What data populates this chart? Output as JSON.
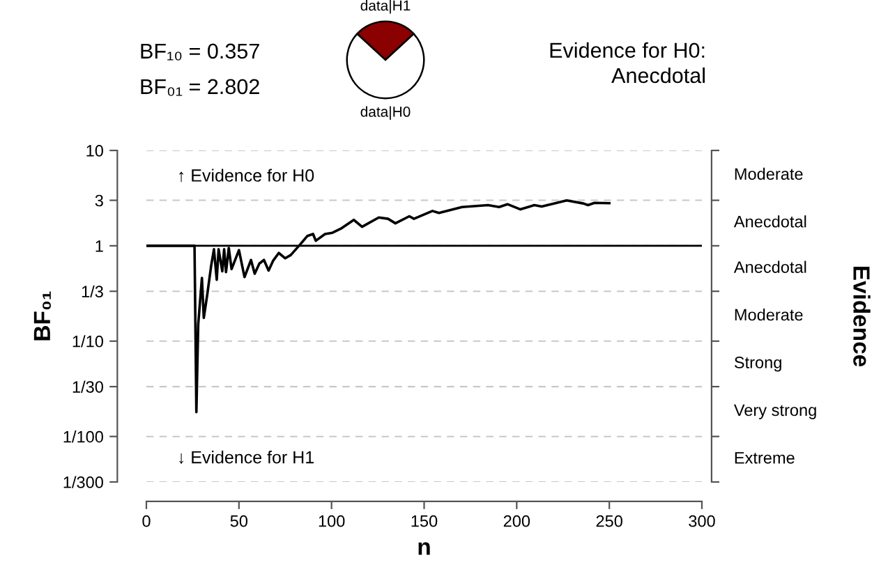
{
  "chart_data": [
    {
      "type": "pie",
      "categories": [
        "data|H1",
        "data|H0"
      ],
      "values": [
        26.3,
        73.7
      ],
      "colors": [
        "#8b0000",
        "#ffffff"
      ],
      "annotations": [
        "BF₁₀ = 0.357",
        "BF₀₁ = 2.802",
        "Evidence for H0:\nAnecdotal"
      ]
    },
    {
      "type": "line",
      "xlabel": "n",
      "ylabel": "BF₀₁",
      "y2label": "Evidence",
      "series": [
        {
          "color": "#000000",
          "x": [
            0,
            26,
            27,
            28,
            30,
            31,
            33,
            35,
            36.5,
            38,
            39,
            41,
            42,
            43,
            44.5,
            46,
            50,
            53,
            56.5,
            58.5,
            61,
            63.5,
            66,
            68.5,
            71.5,
            75,
            78,
            83,
            87,
            90,
            91.5,
            96.5,
            100.5,
            105.5,
            112,
            116.5,
            125.5,
            130.5,
            134.5,
            142,
            144.5,
            154.5,
            158,
            170.5,
            184.5,
            190.5,
            195,
            202,
            209.5,
            213.5,
            227,
            236,
            238.5,
            242,
            250
          ],
          "values": [
            1,
            1,
            0.018,
            0.15,
            0.46,
            0.175,
            0.32,
            0.62,
            0.92,
            0.44,
            0.92,
            0.54,
            0.92,
            0.53,
            0.95,
            0.57,
            0.9,
            0.47,
            0.71,
            0.51,
            0.65,
            0.71,
            0.55,
            0.7,
            0.84,
            0.74,
            0.8,
            1.03,
            1.27,
            1.33,
            1.13,
            1.33,
            1.37,
            1.53,
            1.87,
            1.58,
            1.98,
            1.92,
            1.72,
            2.04,
            1.92,
            2.32,
            2.21,
            2.55,
            2.67,
            2.55,
            2.73,
            2.41,
            2.67,
            2.58,
            2.99,
            2.78,
            2.67,
            2.82,
            2.8
          ]
        }
      ],
      "xlim": [
        0,
        300
      ],
      "xticks": [
        0,
        50,
        100,
        150,
        200,
        250,
        300
      ],
      "log": "y",
      "ylim": [
        0.003333,
        10
      ],
      "yticks": [
        10,
        3,
        1,
        {
          "value": 0.3333,
          "label": "1/3"
        },
        {
          "value": 0.1,
          "label": "1/10"
        },
        {
          "value": 0.03333,
          "label": "1/30"
        },
        {
          "value": 0.01,
          "label": "1/100"
        },
        {
          "value": 0.003333,
          "label": "1/300"
        }
      ],
      "ref_lines": [
        {
          "axis": "y",
          "value": 1,
          "color": "#000000",
          "line_style": "solid"
        }
      ],
      "grid": "y",
      "annotations": [
        "↑ Evidence for H0",
        "↓ Evidence for H1",
        "Moderate",
        "Anecdotal",
        "Anecdotal",
        "Moderate",
        "Strong",
        "Very strong",
        "Extreme"
      ]
    }
  ]
}
